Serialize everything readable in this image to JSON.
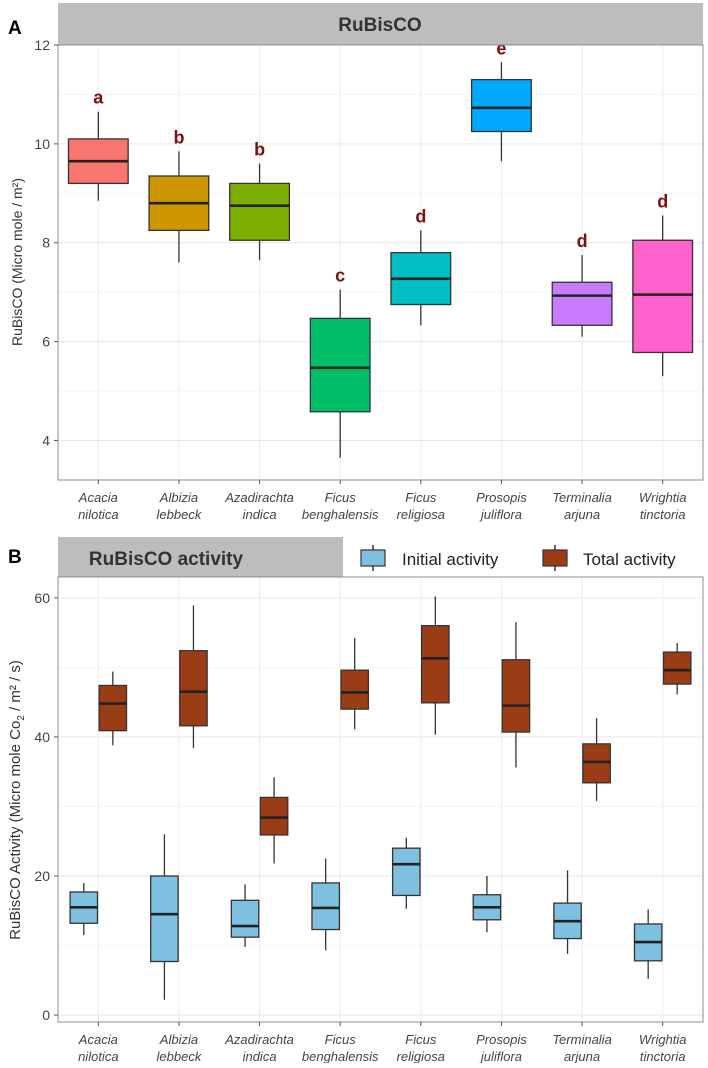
{
  "figure": {
    "panel_a_label": "A",
    "panel_b_label": "B"
  },
  "chart_data": [
    {
      "type": "box",
      "panel": "A",
      "title": "RuBisCO",
      "xlabel": "",
      "ylabel": "RuBisCO (Micro mole / m²)",
      "ylim": [
        3.2,
        12.0
      ],
      "yticks": [
        4,
        6,
        8,
        10,
        12
      ],
      "grid": true,
      "legend": "none",
      "categories": [
        [
          "Acacia",
          "nilotica"
        ],
        [
          "Albizia",
          "lebbeck"
        ],
        [
          "Azadirachta",
          "indica"
        ],
        [
          "Ficus",
          "benghalensis"
        ],
        [
          "Ficus",
          "religiosa"
        ],
        [
          "Prosopis",
          "juliflora"
        ],
        [
          "Terminalia",
          "arjuna"
        ],
        [
          "Wrightia",
          "tinctoria"
        ]
      ],
      "boxes": [
        {
          "min": 8.85,
          "q1": 9.2,
          "median": 9.65,
          "q3": 10.1,
          "max": 10.65,
          "color": "#F8766D",
          "label": "a"
        },
        {
          "min": 7.6,
          "q1": 8.25,
          "median": 8.8,
          "q3": 9.35,
          "max": 9.85,
          "color": "#CD9600",
          "label": "b"
        },
        {
          "min": 7.65,
          "q1": 8.05,
          "median": 8.75,
          "q3": 9.2,
          "max": 9.6,
          "color": "#7CAE00",
          "label": "b"
        },
        {
          "min": 3.65,
          "q1": 4.58,
          "median": 5.47,
          "q3": 6.47,
          "max": 7.05,
          "color": "#00BE67",
          "label": "c"
        },
        {
          "min": 6.33,
          "q1": 6.75,
          "median": 7.27,
          "q3": 7.8,
          "max": 8.25,
          "color": "#00BFC4",
          "label": "d"
        },
        {
          "min": 9.65,
          "q1": 10.25,
          "median": 10.73,
          "q3": 11.3,
          "max": 11.65,
          "color": "#00A9FF",
          "label": "e"
        },
        {
          "min": 6.1,
          "q1": 6.33,
          "median": 6.93,
          "q3": 7.2,
          "max": 7.75,
          "color": "#C77CFF",
          "label": "d"
        },
        {
          "min": 5.3,
          "q1": 5.78,
          "median": 6.95,
          "q3": 8.05,
          "max": 8.55,
          "color": "#FF61CC",
          "label": "d"
        }
      ]
    },
    {
      "type": "box",
      "panel": "B",
      "title": "RuBisCO activity",
      "xlabel": "",
      "ylabel_main": "RuBisCO Activity (Micro mole Co",
      "ylabel_sub": "2",
      "ylabel_end": " / m² / s)",
      "ylim": [
        -1,
        63
      ],
      "yticks": [
        0,
        20,
        40,
        60
      ],
      "grid": true,
      "legend": "top-right",
      "categories": [
        [
          "Acacia",
          "nilotica"
        ],
        [
          "Albizia",
          "lebbeck"
        ],
        [
          "Azadirachta",
          "indica"
        ],
        [
          "Ficus",
          "benghalensis"
        ],
        [
          "Ficus",
          "religiosa"
        ],
        [
          "Prosopis",
          "juliflora"
        ],
        [
          "Terminalia",
          "arjuna"
        ],
        [
          "Wrightia",
          "tinctoria"
        ]
      ],
      "series": [
        {
          "name": "Initial activity",
          "color": "#7FC0E0",
          "boxes": [
            {
              "min": 11.5,
              "q1": 13.2,
              "median": 15.5,
              "q3": 17.7,
              "max": 19.0
            },
            {
              "min": 2.2,
              "q1": 7.7,
              "median": 14.5,
              "q3": 20.0,
              "max": 26.0
            },
            {
              "min": 9.8,
              "q1": 11.2,
              "median": 12.8,
              "q3": 16.5,
              "max": 18.8
            },
            {
              "min": 9.3,
              "q1": 12.3,
              "median": 15.4,
              "q3": 19.0,
              "max": 22.5
            },
            {
              "min": 15.3,
              "q1": 17.2,
              "median": 21.7,
              "q3": 24.0,
              "max": 25.5
            },
            {
              "min": 11.9,
              "q1": 13.7,
              "median": 15.5,
              "q3": 17.3,
              "max": 20.0
            },
            {
              "min": 8.8,
              "q1": 11.0,
              "median": 13.5,
              "q3": 16.1,
              "max": 20.8
            },
            {
              "min": 5.2,
              "q1": 7.8,
              "median": 10.5,
              "q3": 13.1,
              "max": 15.2
            }
          ]
        },
        {
          "name": "Total activity",
          "color": "#9A3D16",
          "boxes": [
            {
              "min": 38.8,
              "q1": 40.9,
              "median": 44.8,
              "q3": 47.4,
              "max": 49.4
            },
            {
              "min": 38.4,
              "q1": 41.6,
              "median": 46.5,
              "q3": 52.4,
              "max": 58.9
            },
            {
              "min": 21.8,
              "q1": 25.9,
              "median": 28.4,
              "q3": 31.3,
              "max": 34.2
            },
            {
              "min": 41.1,
              "q1": 44.0,
              "median": 46.4,
              "q3": 49.6,
              "max": 54.2
            },
            {
              "min": 40.3,
              "q1": 44.9,
              "median": 51.3,
              "q3": 56.0,
              "max": 60.2
            },
            {
              "min": 35.6,
              "q1": 40.7,
              "median": 44.5,
              "q3": 51.1,
              "max": 56.5
            },
            {
              "min": 30.8,
              "q1": 33.4,
              "median": 36.4,
              "q3": 39.0,
              "max": 42.7
            },
            {
              "min": 46.1,
              "q1": 47.6,
              "median": 49.6,
              "q3": 52.2,
              "max": 53.5
            }
          ]
        }
      ]
    }
  ]
}
